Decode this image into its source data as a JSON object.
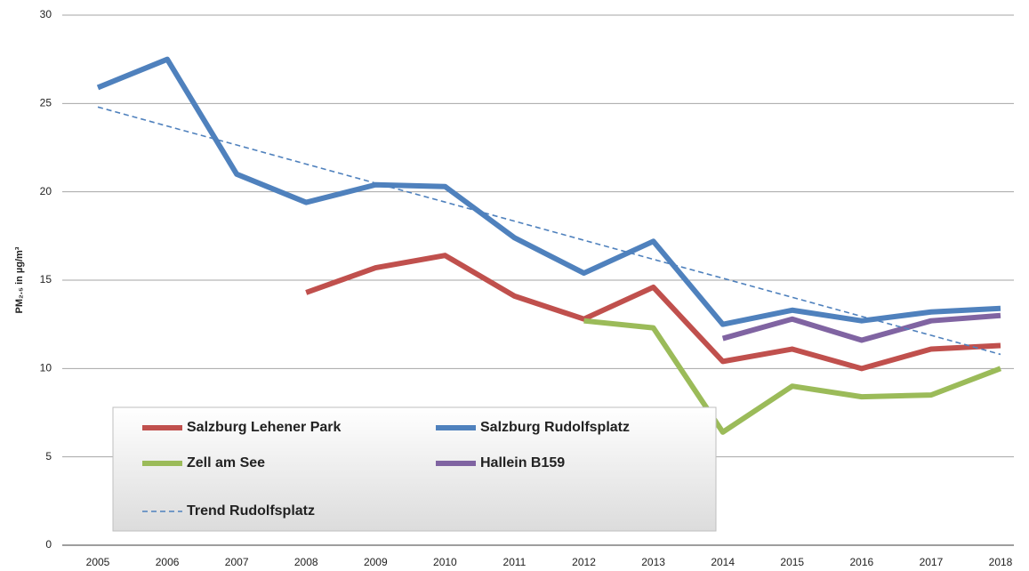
{
  "chart_data": {
    "type": "line",
    "y_label": "PM₂.₅ in µg/m³",
    "categories": [
      "2005",
      "2006",
      "2007",
      "2008",
      "2009",
      "2010",
      "2011",
      "2012",
      "2013",
      "2014",
      "2015",
      "2016",
      "2017",
      "2018"
    ],
    "series": [
      {
        "name": "Salzburg Lehener Park",
        "color": "#c0504d",
        "values": [
          null,
          null,
          null,
          14.3,
          15.7,
          16.4,
          14.1,
          12.8,
          14.6,
          10.4,
          11.1,
          10.0,
          11.1,
          11.3
        ]
      },
      {
        "name": "Salzburg Rudolfsplatz",
        "color": "#4f81bd",
        "values": [
          25.9,
          27.5,
          21.0,
          19.4,
          20.4,
          20.3,
          17.4,
          15.4,
          17.2,
          12.5,
          13.3,
          12.7,
          13.2,
          13.4
        ]
      },
      {
        "name": "Zell am See",
        "color": "#9bbb59",
        "values": [
          null,
          null,
          null,
          null,
          null,
          null,
          null,
          12.7,
          12.3,
          6.4,
          9.0,
          8.4,
          8.5,
          10.0
        ]
      },
      {
        "name": "Hallein B159",
        "color": "#8064a2",
        "values": [
          null,
          null,
          null,
          null,
          null,
          null,
          null,
          null,
          null,
          11.7,
          12.8,
          11.6,
          12.7,
          13.0
        ]
      },
      {
        "name": "Trend Rudolfsplatz",
        "color": "#4f81bd",
        "dashed": true,
        "values": [
          24.8,
          23.72,
          22.65,
          21.57,
          20.49,
          19.42,
          18.34,
          17.26,
          16.18,
          15.11,
          14.03,
          12.95,
          11.88,
          10.8
        ]
      }
    ],
    "ylim": [
      0,
      30
    ],
    "yticks": [
      0,
      5,
      10,
      15,
      20,
      25,
      30
    ],
    "grid": true,
    "legend": "lower left"
  }
}
